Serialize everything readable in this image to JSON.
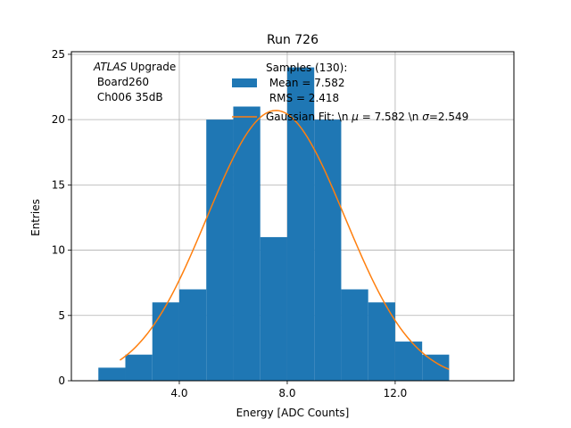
{
  "chart_data": {
    "type": "histogram",
    "title": "Run 726",
    "xlabel": "Energy [ADC Counts]",
    "ylabel": "Entries",
    "xlim": [
      0.0,
      16.4
    ],
    "ylim": [
      0,
      25.2
    ],
    "xticks": [
      4.0,
      8.0,
      12.0
    ],
    "xtick_labels": [
      "4.0",
      "8.0",
      "12.0"
    ],
    "yticks": [
      0,
      5,
      10,
      15,
      20,
      25
    ],
    "ytick_labels": [
      "0",
      "5",
      "10",
      "15",
      "20",
      "25"
    ],
    "grid": true,
    "bar_color": "#1f77b4",
    "fit_color": "#ff7f0e",
    "bins": [
      {
        "x0": 1.0,
        "x1": 2.0,
        "count": 1
      },
      {
        "x0": 2.0,
        "x1": 3.0,
        "count": 2
      },
      {
        "x0": 3.0,
        "x1": 4.0,
        "count": 6
      },
      {
        "x0": 4.0,
        "x1": 5.0,
        "count": 7
      },
      {
        "x0": 5.0,
        "x1": 6.0,
        "count": 20
      },
      {
        "x0": 6.0,
        "x1": 7.0,
        "count": 21
      },
      {
        "x0": 7.0,
        "x1": 8.0,
        "count": 11
      },
      {
        "x0": 8.0,
        "x1": 9.0,
        "count": 24
      },
      {
        "x0": 9.0,
        "x1": 10.0,
        "count": 20
      },
      {
        "x0": 10.0,
        "x1": 11.0,
        "count": 7
      },
      {
        "x0": 11.0,
        "x1": 12.0,
        "count": 6
      },
      {
        "x0": 12.0,
        "x1": 13.0,
        "count": 3
      },
      {
        "x0": 13.0,
        "x1": 14.0,
        "count": 2
      }
    ],
    "fit": {
      "label_plain": "Gaussian Fit: \\n μ = 7.582 \\n σ=2.549",
      "mean": 7.582,
      "sigma": 2.549,
      "amplitude": 20.7,
      "x_range": [
        1.8,
        14.0
      ]
    },
    "legend": {
      "hist_label_lines": [
        "Samples (130):",
        " Mean = 7.582",
        " RMS = 2.418"
      ],
      "fit_prefix": "Gaussian Fit: \\n ",
      "fit_mu_symbol": "μ",
      "fit_mid": " = 7.582 \\n ",
      "fit_sigma_symbol": "σ",
      "fit_suffix": "=2.549",
      "placement": "upper-center"
    },
    "annotation": {
      "italic_part": "ATLAS",
      "line1_rest": " Upgrade",
      "line2": " Board260",
      "line3": " Ch006 35dB"
    }
  }
}
